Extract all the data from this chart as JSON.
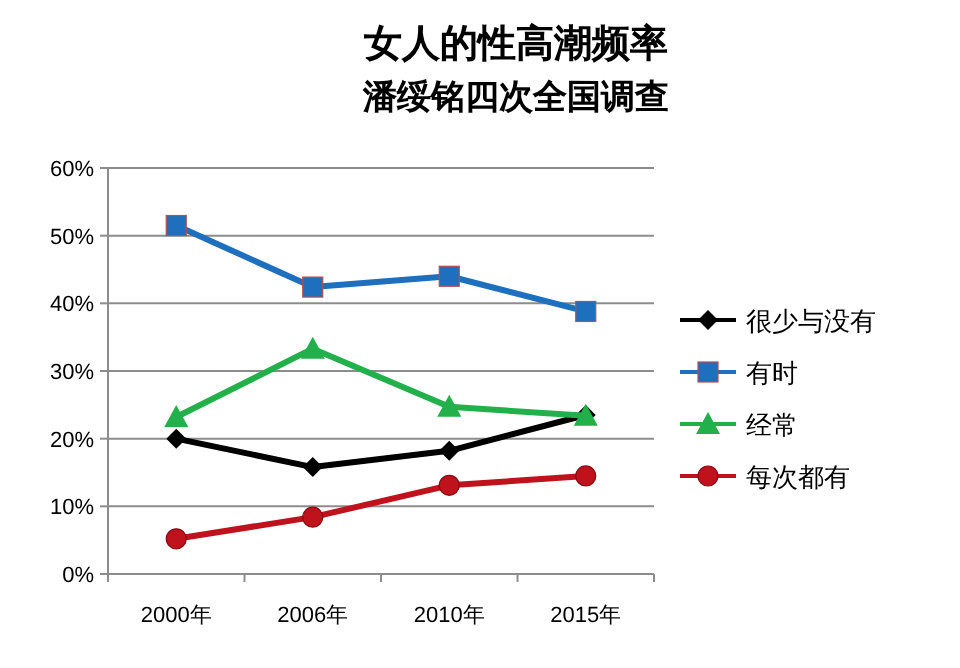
{
  "chart_data": {
    "type": "line",
    "title": "女人的性高潮频率",
    "subtitle": "潘绥铭四次全国调查",
    "categories": [
      "2000年",
      "2006年",
      "2010年",
      "2015年"
    ],
    "series": [
      {
        "name": "很少与没有",
        "color": "#000000",
        "marker": "diamond",
        "values": [
          20,
          15.8,
          18.2,
          23.5
        ]
      },
      {
        "name": "有时",
        "color": "#1f6fbf",
        "marker": "square",
        "values": [
          51.5,
          42.4,
          44,
          38.8
        ]
      },
      {
        "name": "经常",
        "color": "#22b04a",
        "marker": "triangle",
        "values": [
          23.2,
          33.3,
          24.7,
          23.4
        ]
      },
      {
        "name": "每次都有",
        "color": "#c0121c",
        "marker": "circle",
        "values": [
          5.2,
          8.4,
          13.1,
          14.5
        ]
      }
    ],
    "ylim": [
      0,
      60
    ],
    "yticks": [
      {
        "value": 0,
        "label": "0%"
      },
      {
        "value": 10,
        "label": "10%"
      },
      {
        "value": 20,
        "label": "20%"
      },
      {
        "value": 30,
        "label": "30%"
      },
      {
        "value": 40,
        "label": "40%"
      },
      {
        "value": 50,
        "label": "50%"
      },
      {
        "value": 60,
        "label": "60%"
      }
    ],
    "grid": "y",
    "legend": "right",
    "line_style": "solid"
  }
}
